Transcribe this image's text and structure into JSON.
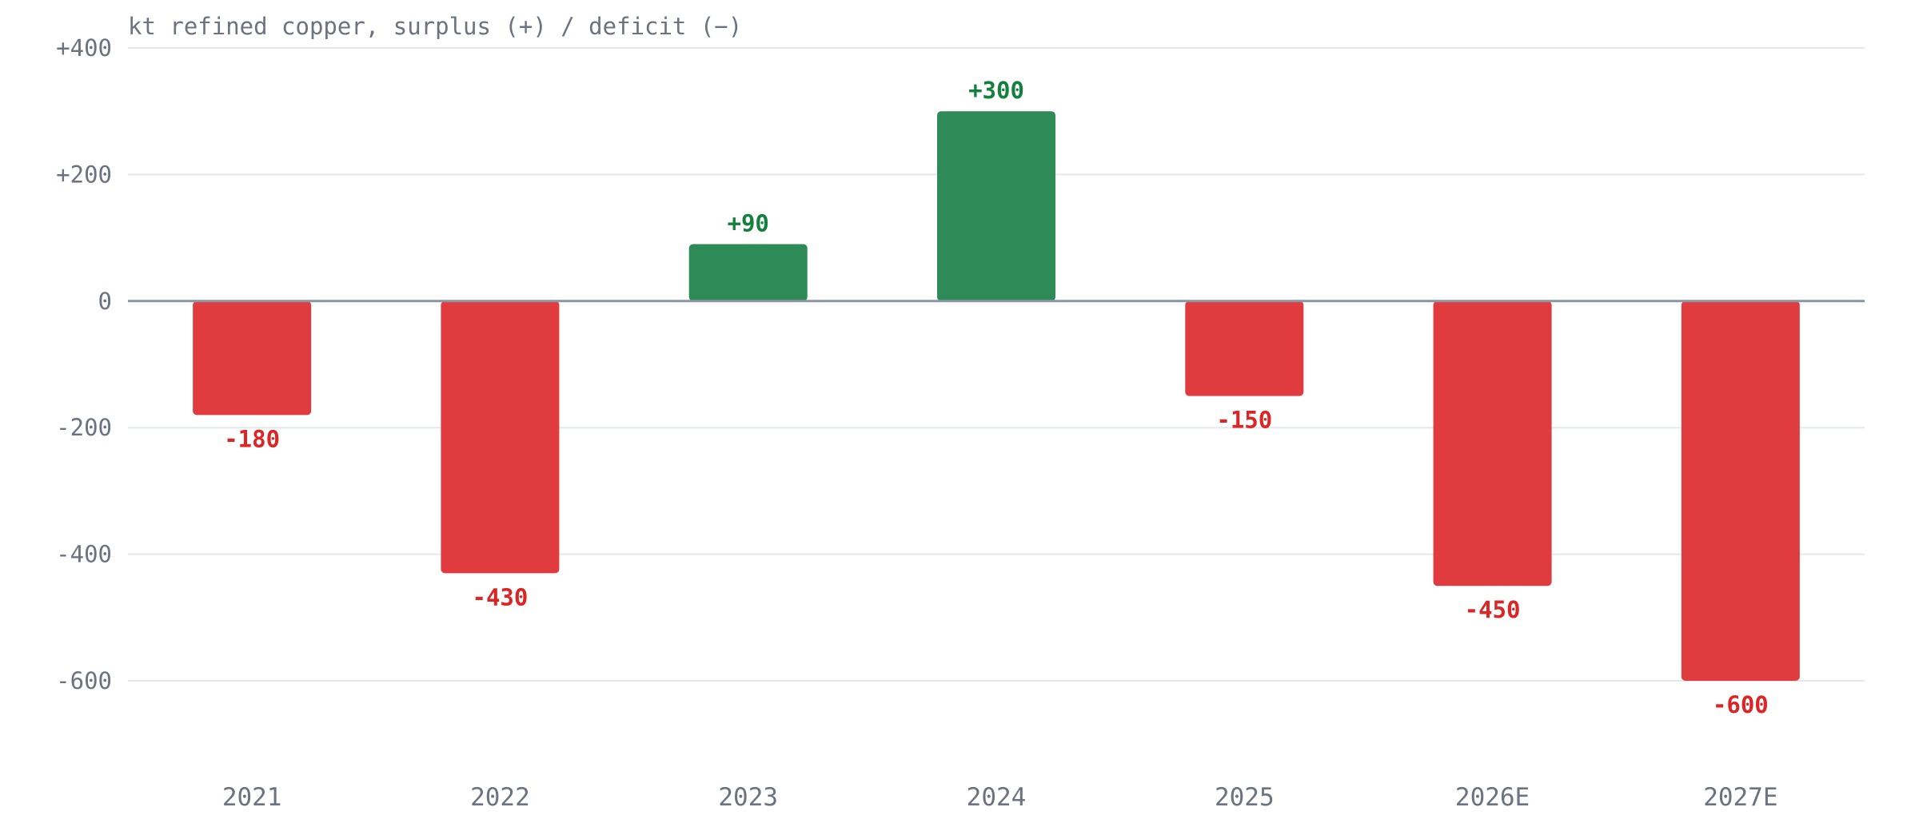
{
  "chart_data": {
    "type": "bar",
    "ylabel": "kt refined copper, surplus (+) / deficit (−)",
    "categories": [
      "2021",
      "2022",
      "2023",
      "2024",
      "2025",
      "2026E",
      "2027E"
    ],
    "values": [
      -180,
      -430,
      90,
      300,
      -150,
      -450,
      -600
    ],
    "value_labels": [
      "-180",
      "-430",
      "+90",
      "+300",
      "-150",
      "-450",
      "-600"
    ],
    "ylim": [
      -750,
      400
    ],
    "yticks": [
      400,
      200,
      0,
      -200,
      -400,
      -600
    ],
    "ytick_labels": [
      "+400",
      "+200",
      "0",
      "-200",
      "-400",
      "-600"
    ],
    "grid": true,
    "colors": {
      "positive_bar": "#2e8b57",
      "negative_bar": "#e03c3f",
      "positive_label": "#15803d",
      "negative_label": "#dc2626",
      "zero_line": "#8a96a3",
      "gridline": "#e5e7eb",
      "axis_text": "#6b7280"
    }
  }
}
